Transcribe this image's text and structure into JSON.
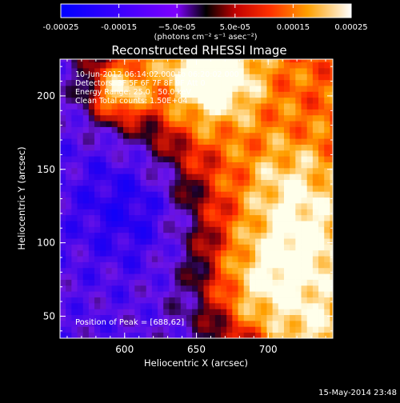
{
  "chart_data": {
    "type": "heatmap",
    "title": "Reconstructed RHESSI Image",
    "xlabel": "Heliocentric X (arcsec)",
    "ylabel": "Heliocentric Y (arcsec)",
    "xlim": [
      555,
      745
    ],
    "ylim": [
      35,
      225
    ],
    "x_ticks": [
      600,
      650,
      700
    ],
    "y_ticks": [
      50,
      100,
      150,
      200
    ],
    "colorbar": {
      "range": [
        -0.00025,
        0.00025
      ],
      "tick_values": [
        -0.00025,
        -0.00015,
        -5e-05,
        5e-05,
        0.00015,
        0.00025
      ],
      "tick_labels": [
        "-0.00025",
        "-0.00015",
        "−5.0e-05",
        "5.0e-05",
        "0.00015",
        "0.00025"
      ],
      "unit_label": "(photons cm⁻² s⁻¹ asec⁻²)",
      "colors": [
        "#0000ff",
        "#7f00ff",
        "#000000",
        "#ff0000",
        "#ffa000",
        "#ffffff"
      ]
    },
    "annotations": [
      "10-Jun-2012 06:14:02.000 to 06:20:02.000",
      "Detectors: 3F 5F 6F 7F 8F 9F  Att 0",
      "Energy Range: 25.0 - 50.0 keV",
      "Clean      Total counts: 1.50E+04"
    ],
    "peak_label": "Position of Peak = [688,62]",
    "peak": [
      688,
      62
    ],
    "features": {
      "negative_minimum": [
        607,
        128
      ],
      "bright_regions": [
        [
          688,
          62
        ],
        [
          725,
          95
        ],
        [
          715,
          140
        ],
        [
          660,
          215
        ],
        [
          595,
          202
        ],
        [
          735,
          35
        ]
      ]
    },
    "grid": false
  },
  "footer": {
    "date": "15-May-2014 23:48"
  }
}
